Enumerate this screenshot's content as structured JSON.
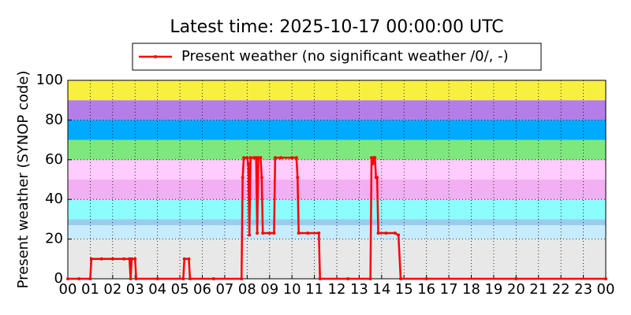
{
  "chart_data": {
    "type": "line",
    "title": "Latest time: 2025-10-17 00:00:00 UTC",
    "y_label": "Present weather (SYNOP code)",
    "x": [
      0,
      0.5,
      1.0,
      1.05,
      1.5,
      2.0,
      2.5,
      2.75,
      2.8,
      2.85,
      3.0,
      3.05,
      4,
      5.15,
      5.2,
      5.4,
      5.45,
      6.5,
      7.75,
      7.8,
      7.85,
      8.0,
      8.05,
      8.1,
      8.15,
      8.3,
      8.4,
      8.45,
      8.5,
      8.6,
      8.65,
      8.7,
      9.0,
      9.2,
      9.25,
      9.5,
      10.0,
      10.2,
      10.25,
      10.3,
      10.7,
      11.2,
      11.25,
      12.5,
      13.5,
      13.55,
      13.6,
      13.65,
      13.7,
      13.75,
      13.8,
      13.85,
      14.2,
      14.6,
      14.75,
      14.85,
      16,
      20,
      24
    ],
    "series": [
      {
        "name": "Present weather (no significant weather /0/, -)",
        "color": "#ff0000",
        "values": [
          0,
          0,
          0,
          10,
          10,
          10,
          10,
          10,
          0,
          10,
          10,
          0,
          0,
          0,
          10,
          10,
          0,
          0,
          0,
          51,
          61,
          61,
          58,
          22,
          61,
          61,
          61,
          23,
          61,
          61,
          51,
          23,
          23,
          23,
          61,
          61,
          61,
          61,
          51,
          23,
          23,
          23,
          0,
          0,
          0,
          61,
          58,
          61,
          61,
          51,
          51,
          23,
          23,
          23,
          22,
          0,
          0,
          0,
          0
        ]
      }
    ],
    "xlim": [
      0,
      24
    ],
    "xticks": [
      {
        "value": 0,
        "label": "00"
      },
      {
        "value": 1,
        "label": "01"
      },
      {
        "value": 2,
        "label": "02"
      },
      {
        "value": 3,
        "label": "03"
      },
      {
        "value": 4,
        "label": "04"
      },
      {
        "value": 5,
        "label": "05"
      },
      {
        "value": 6,
        "label": "06"
      },
      {
        "value": 7,
        "label": "07"
      },
      {
        "value": 8,
        "label": "08"
      },
      {
        "value": 9,
        "label": "09"
      },
      {
        "value": 10,
        "label": "10"
      },
      {
        "value": 11,
        "label": "11"
      },
      {
        "value": 12,
        "label": "12"
      },
      {
        "value": 13,
        "label": "13"
      },
      {
        "value": 14,
        "label": "14"
      },
      {
        "value": 15,
        "label": "15"
      },
      {
        "value": 16,
        "label": "16"
      },
      {
        "value": 17,
        "label": "17"
      },
      {
        "value": 18,
        "label": "18"
      },
      {
        "value": 19,
        "label": "19"
      },
      {
        "value": 20,
        "label": "20"
      },
      {
        "value": 21,
        "label": "21"
      },
      {
        "value": 22,
        "label": "22"
      },
      {
        "value": 23,
        "label": "23"
      },
      {
        "value": 24,
        "label": "00"
      }
    ],
    "ylim": [
      0,
      100
    ],
    "yticks": [
      0,
      20,
      40,
      60,
      80,
      100
    ],
    "grid": true,
    "legend": "top",
    "bands": [
      {
        "from": 0,
        "to": 20,
        "color": "#e8e8e8"
      },
      {
        "from": 20,
        "to": 27,
        "color": "#c8ecff"
      },
      {
        "from": 27,
        "to": 30,
        "color": "#99ccee"
      },
      {
        "from": 30,
        "to": 40,
        "color": "#8cfcfc"
      },
      {
        "from": 40,
        "to": 50,
        "color": "#f2b0f2"
      },
      {
        "from": 50,
        "to": 60,
        "color": "#ffccff"
      },
      {
        "from": 60,
        "to": 70,
        "color": "#7ee87e"
      },
      {
        "from": 70,
        "to": 80,
        "color": "#00aaff"
      },
      {
        "from": 80,
        "to": 90,
        "color": "#b47ee8"
      },
      {
        "from": 90,
        "to": 100,
        "color": "#f8f040"
      }
    ]
  }
}
